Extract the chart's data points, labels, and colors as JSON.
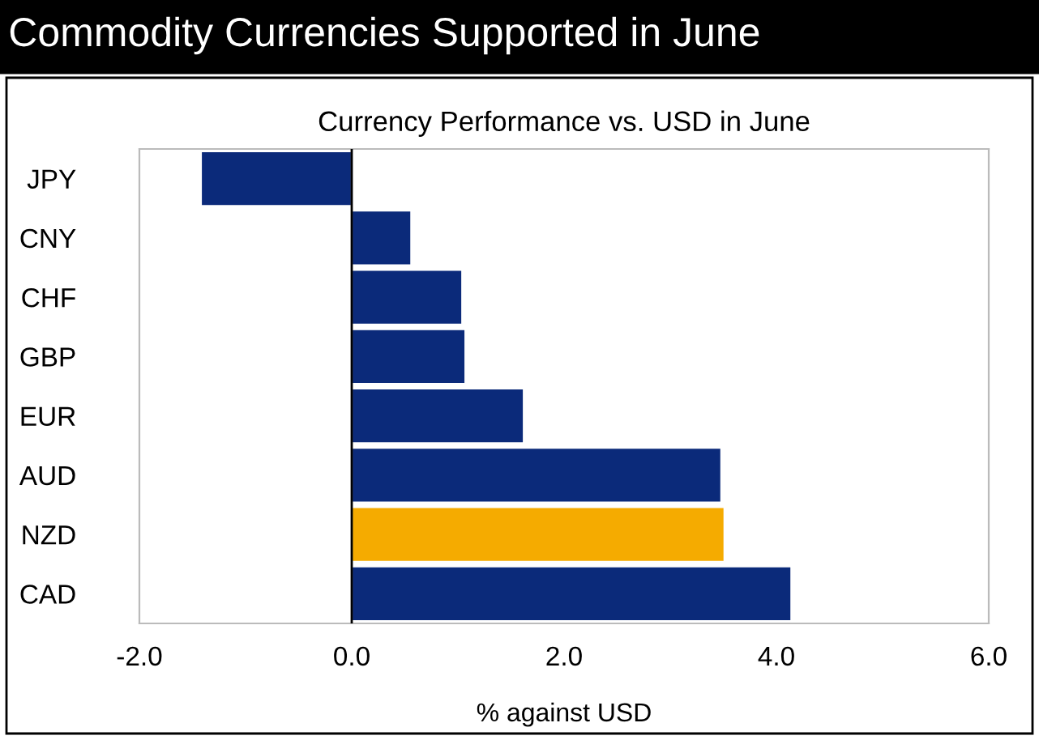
{
  "chart_data": {
    "type": "bar",
    "orientation": "horizontal",
    "title": "Commodity Currencies Supported in June",
    "subtitle": "Currency Performance vs. USD in June",
    "xlabel": "% against USD",
    "categories": [
      "JPY",
      "CNY",
      "CHF",
      "GBP",
      "EUR",
      "AUD",
      "NZD",
      "CAD"
    ],
    "values": [
      -1.42,
      0.56,
      1.04,
      1.07,
      1.62,
      3.48,
      3.51,
      4.14
    ],
    "colors": [
      "#0b2a7a",
      "#0b2a7a",
      "#0b2a7a",
      "#0b2a7a",
      "#0b2a7a",
      "#0b2a7a",
      "#f5ab00",
      "#0b2a7a"
    ],
    "xlim": [
      -2,
      6
    ],
    "xticks": [
      {
        "value": -2,
        "label": "-2.0"
      },
      {
        "value": 0,
        "label": "0.0"
      },
      {
        "value": 2,
        "label": "2.0"
      },
      {
        "value": 4,
        "label": "4.0"
      },
      {
        "value": 6,
        "label": "6.0"
      }
    ],
    "ref_lines": [
      {
        "axis": "x",
        "value": 0,
        "color": "#000000"
      }
    ],
    "legend": false
  }
}
